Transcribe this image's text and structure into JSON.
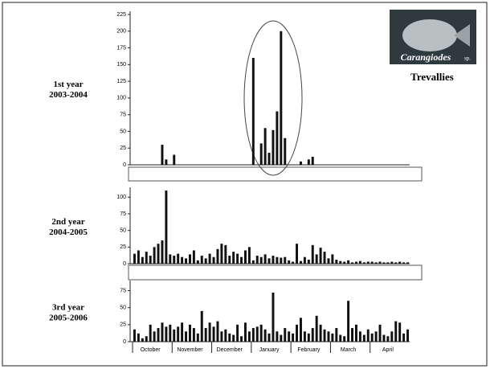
{
  "chart_data": [
    {
      "type": "bar",
      "row_label": [
        "1st year",
        "2003-2004"
      ],
      "image_caption": [
        "Carangiodes",
        "sp."
      ],
      "subtitle": "Trevallies",
      "values": [
        0,
        0,
        0,
        0,
        0,
        0,
        0,
        30,
        8,
        0,
        15,
        0,
        0,
        0,
        0,
        0,
        0,
        0,
        0,
        0,
        0,
        0,
        0,
        0,
        0,
        0,
        0,
        0,
        0,
        0,
        160,
        0,
        32,
        55,
        18,
        52,
        80,
        200,
        40,
        0,
        0,
        0,
        5,
        0,
        8,
        12,
        0,
        0,
        0,
        0,
        0,
        0,
        0,
        0,
        0,
        0,
        0,
        0,
        0,
        0,
        0,
        0,
        0,
        0,
        0,
        0,
        0,
        0,
        0,
        0
      ],
      "color": "#111111",
      "ylim": [
        0,
        225
      ],
      "yticks": [
        0,
        25,
        50,
        75,
        100,
        125,
        150,
        175,
        200,
        225
      ]
    },
    {
      "type": "bar",
      "row_label": [
        "2nd year",
        "2004-2005"
      ],
      "values": [
        15,
        20,
        10,
        18,
        12,
        25,
        30,
        35,
        110,
        14,
        12,
        15,
        10,
        8,
        14,
        20,
        5,
        12,
        8,
        15,
        10,
        22,
        30,
        28,
        12,
        18,
        15,
        10,
        20,
        25,
        5,
        12,
        10,
        14,
        8,
        12,
        10,
        9,
        10,
        5,
        3,
        30,
        4,
        10,
        6,
        28,
        14,
        24,
        18,
        8,
        14,
        6,
        4,
        3,
        5,
        2,
        3,
        4,
        2,
        3,
        3,
        2,
        3,
        2,
        2,
        3,
        2,
        3,
        2,
        2
      ],
      "color": "#111111",
      "ylim": [
        0,
        110
      ],
      "yticks": [
        0,
        25,
        50,
        75,
        100
      ]
    },
    {
      "type": "bar",
      "row_label": [
        "3rd year",
        "2005-2006"
      ],
      "categories": [
        null,
        null,
        null,
        null,
        "October",
        null,
        null,
        null,
        null,
        null,
        null,
        null,
        null,
        null,
        "November",
        null,
        null,
        null,
        null,
        null,
        null,
        null,
        null,
        null,
        "December",
        null,
        null,
        null,
        null,
        null,
        null,
        null,
        null,
        null,
        "January",
        null,
        null,
        null,
        null,
        null,
        null,
        null,
        null,
        null,
        "February",
        null,
        null,
        null,
        null,
        null,
        null,
        null,
        null,
        null,
        "March",
        null,
        null,
        null,
        null,
        null,
        null,
        null,
        null,
        null,
        "April",
        null,
        null,
        null,
        null,
        null
      ],
      "values": [
        18,
        12,
        5,
        8,
        25,
        15,
        20,
        28,
        22,
        25,
        18,
        22,
        28,
        15,
        25,
        20,
        12,
        45,
        20,
        28,
        22,
        30,
        15,
        18,
        12,
        10,
        25,
        8,
        28,
        15,
        20,
        22,
        25,
        18,
        12,
        72,
        15,
        10,
        20,
        15,
        12,
        25,
        35,
        15,
        12,
        20,
        38,
        25,
        18,
        15,
        12,
        20,
        10,
        8,
        60,
        20,
        25,
        15,
        10,
        18,
        12,
        15,
        25,
        10,
        8,
        15,
        30,
        28,
        12,
        18
      ],
      "color": "#111111",
      "ylim": [
        0,
        85
      ],
      "yticks": [
        0,
        25,
        50,
        75
      ]
    }
  ]
}
